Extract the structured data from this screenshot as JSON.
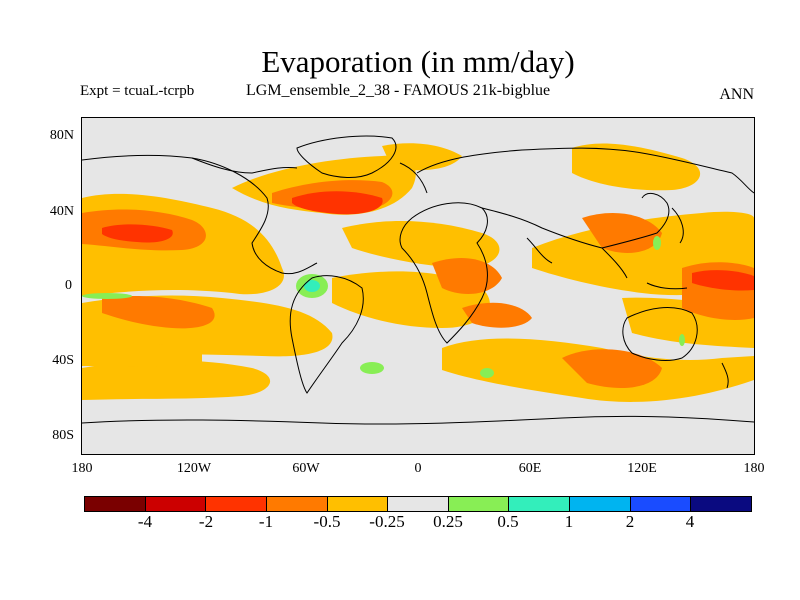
{
  "figure": {
    "title": "Evaporation (in mm/day)",
    "experiment": "Expt = tcuaL-tcrpb",
    "run_name": "LGM_ensemble_2_38 - FAMOUS 21k-bigblue",
    "season": "ANN"
  },
  "axes": {
    "lat_ticks": [
      "80N",
      "40N",
      "0",
      "40S",
      "80S"
    ],
    "lon_ticks": [
      "180",
      "120W",
      "60W",
      "0",
      "60E",
      "120E",
      "180"
    ]
  },
  "colorbar": {
    "colors": [
      "#7a0000",
      "#cc0000",
      "#ff3300",
      "#ff7a00",
      "#ffbf00",
      "#e6e6e6",
      "#88ee55",
      "#33eebb",
      "#00b4f0",
      "#1a4cff",
      "#0a0a80"
    ],
    "labels": [
      "-4",
      "-2",
      "-1",
      "-0.5",
      "-0.25",
      "0.25",
      "0.5",
      "1",
      "2",
      "4"
    ]
  },
  "field_colors": {
    "background": "#e6e6e6",
    "orange_light": "#ffbf00",
    "orange": "#ff7a00",
    "red": "#ff3300",
    "green": "#88ee55",
    "cyan": "#33eebb"
  }
}
